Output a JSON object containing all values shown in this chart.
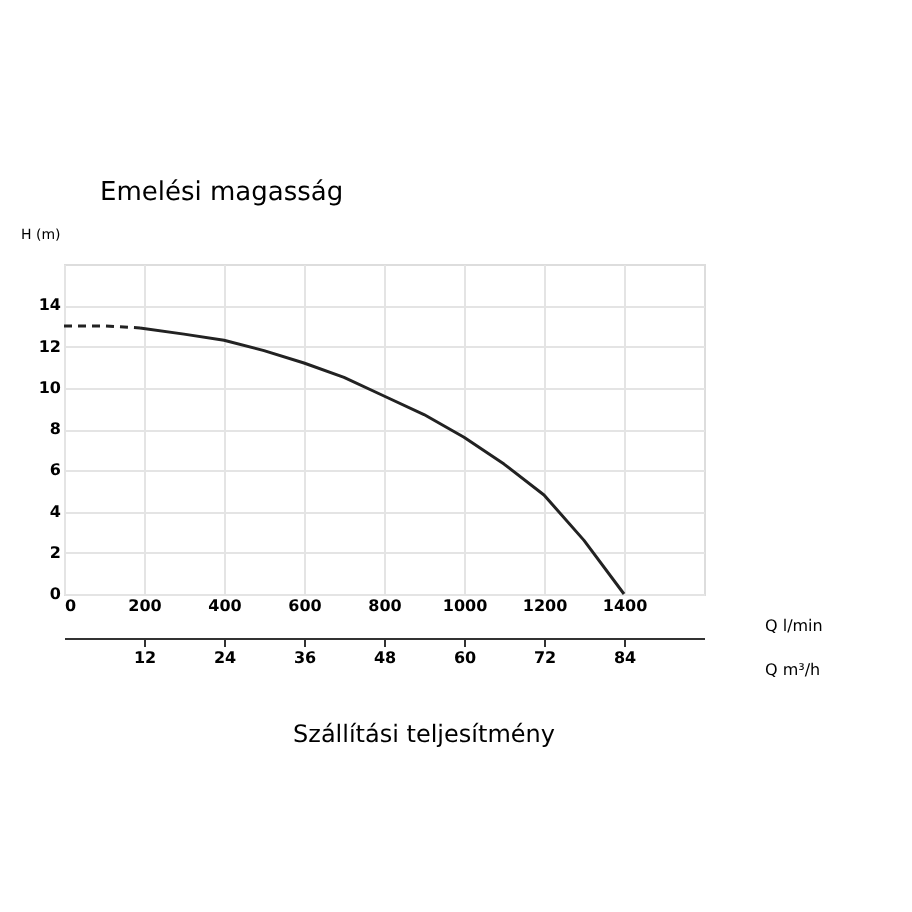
{
  "chart_data": {
    "type": "line",
    "title": "Emelési magasság",
    "xlabel": "Q l/min",
    "ylabel": "H (m)",
    "x2label": "Q m³/h",
    "annotations": [
      "Szállítási teljesítmény"
    ],
    "series": [
      {
        "color": "#222222",
        "line_style": "dashed",
        "x": [
          0,
          100,
          190
        ],
        "values": [
          13.0,
          13.0,
          12.9
        ]
      },
      {
        "color": "#222222",
        "line_style": "solid",
        "x": [
          190,
          300,
          400,
          500,
          600,
          700,
          800,
          900,
          1000,
          1100,
          1200,
          1300,
          1400
        ],
        "values": [
          12.9,
          12.6,
          12.3,
          11.8,
          11.2,
          10.5,
          9.6,
          8.7,
          7.6,
          6.3,
          4.8,
          2.6,
          0
        ]
      }
    ],
    "xlim": [
      0,
      1600
    ],
    "xticks": [
      0,
      200,
      400,
      600,
      800,
      1000,
      1200,
      1400
    ],
    "x2lim": [
      0,
      96
    ],
    "x2ticks": [
      12,
      24,
      36,
      48,
      60,
      72,
      84
    ],
    "ylim": [
      0,
      16
    ],
    "yticks": [
      0,
      2,
      4,
      6,
      8,
      10,
      12,
      14
    ],
    "grid": true,
    "marker": "none"
  }
}
